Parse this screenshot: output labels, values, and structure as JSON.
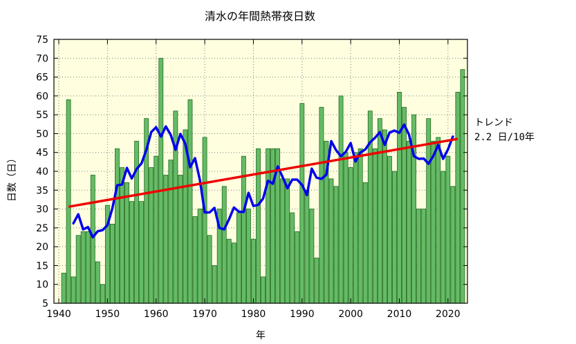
{
  "chart_data": {
    "type": "bar",
    "title": "清水の年間熱帯夜日数",
    "xlabel": "年",
    "ylabel": "日数（日）",
    "xlim": [
      1939,
      2024
    ],
    "ylim": [
      5,
      75
    ],
    "xticks": [
      1940,
      1950,
      1960,
      1970,
      1980,
      1990,
      2000,
      2010,
      2020
    ],
    "yticks": [
      5,
      10,
      15,
      20,
      25,
      30,
      35,
      40,
      45,
      50,
      55,
      60,
      65,
      70,
      75
    ],
    "grid": true,
    "colors": {
      "plot_background": "#ffffe0",
      "bar_fill": "#66bb66",
      "bar_edge": "#1f6b1f",
      "moving_average": "#0000ee",
      "trend": "#ee0000"
    },
    "years": [
      1941,
      1942,
      1943,
      1944,
      1945,
      1946,
      1947,
      1948,
      1949,
      1950,
      1951,
      1952,
      1953,
      1954,
      1955,
      1956,
      1957,
      1958,
      1959,
      1960,
      1961,
      1962,
      1963,
      1964,
      1965,
      1966,
      1967,
      1968,
      1969,
      1970,
      1971,
      1972,
      1973,
      1974,
      1975,
      1976,
      1977,
      1978,
      1979,
      1980,
      1981,
      1982,
      1983,
      1984,
      1985,
      1986,
      1987,
      1988,
      1989,
      1990,
      1991,
      1992,
      1993,
      1994,
      1995,
      1996,
      1997,
      1998,
      1999,
      2000,
      2001,
      2002,
      2003,
      2004,
      2005,
      2006,
      2007,
      2008,
      2009,
      2010,
      2011,
      2012,
      2013,
      2014,
      2015,
      2016,
      2017,
      2018,
      2019,
      2020,
      2021,
      2022,
      2023
    ],
    "series": [
      {
        "type": "bar",
        "values": [
          13,
          59,
          12,
          23,
          24,
          24,
          39,
          16,
          10,
          31,
          26,
          46,
          41,
          37,
          32,
          48,
          32,
          54,
          41,
          44,
          70,
          39,
          43,
          56,
          39,
          51,
          59,
          28,
          30,
          49,
          23,
          15,
          30,
          36,
          22,
          21,
          29,
          44,
          30,
          22,
          46,
          12,
          46,
          46,
          46,
          38,
          38,
          29,
          24,
          58,
          35,
          30,
          17,
          57,
          48,
          38,
          36,
          60,
          45,
          41,
          45,
          46,
          37,
          56,
          46,
          54,
          51,
          44,
          40,
          61,
          57,
          48,
          55,
          30,
          30,
          54,
          48,
          49,
          40,
          44,
          36,
          61,
          67
        ]
      },
      {
        "type": "line",
        "x": [
          1943,
          1944,
          1945,
          1946,
          1947,
          1948,
          1949,
          1950,
          1951,
          1952,
          1953,
          1954,
          1955,
          1956,
          1957,
          1958,
          1959,
          1960,
          1961,
          1962,
          1963,
          1964,
          1965,
          1966,
          1967,
          1968,
          1969,
          1970,
          1971,
          1972,
          1973,
          1974,
          1975,
          1976,
          1977,
          1978,
          1979,
          1980,
          1981,
          1982,
          1983,
          1984,
          1985,
          1986,
          1987,
          1988,
          1989,
          1990,
          1991,
          1992,
          1993,
          1994,
          1995,
          1996,
          1997,
          1998,
          1999,
          2000,
          2001,
          2002,
          2003,
          2004,
          2005,
          2006,
          2007,
          2008,
          2009,
          2010,
          2011,
          2012,
          2013,
          2014,
          2015,
          2016,
          2017,
          2018,
          2019,
          2020,
          2021
        ],
        "values": [
          26.2,
          28.6,
          24.6,
          25.2,
          22.5,
          24.1,
          24.4,
          25.7,
          30.1,
          36.3,
          36.5,
          40.9,
          38.1,
          40.6,
          42.1,
          45.7,
          50.4,
          51.7,
          49.2,
          51.9,
          49.7,
          45.7,
          49.9,
          47.3,
          41.1,
          43.5,
          37.7,
          29.1,
          29.1,
          30.3,
          25.0,
          24.6,
          27.3,
          30.4,
          29.3,
          29.2,
          34.3,
          30.8,
          31.1,
          32.8,
          37.5,
          36.7,
          41.3,
          38.5,
          35.5,
          37.8,
          37.8,
          36.4,
          33.7,
          40.7,
          38.3,
          38.0,
          39.1,
          48.0,
          45.6,
          44.0,
          45.2,
          47.5,
          42.6,
          45.0,
          45.8,
          47.7,
          48.9,
          50.4,
          47.0,
          50.3,
          50.8,
          50.2,
          52.4,
          49.7,
          44.0,
          43.3,
          43.4,
          42.0,
          44.1,
          47.0,
          43.3,
          45.8,
          49.2
        ]
      },
      {
        "type": "line",
        "x": [
          1942,
          2022
        ],
        "values": [
          30.6,
          48.6
        ]
      }
    ],
    "annotations": {
      "trend_title": "トレンド",
      "trend_value": "2.2 日/10年"
    }
  }
}
